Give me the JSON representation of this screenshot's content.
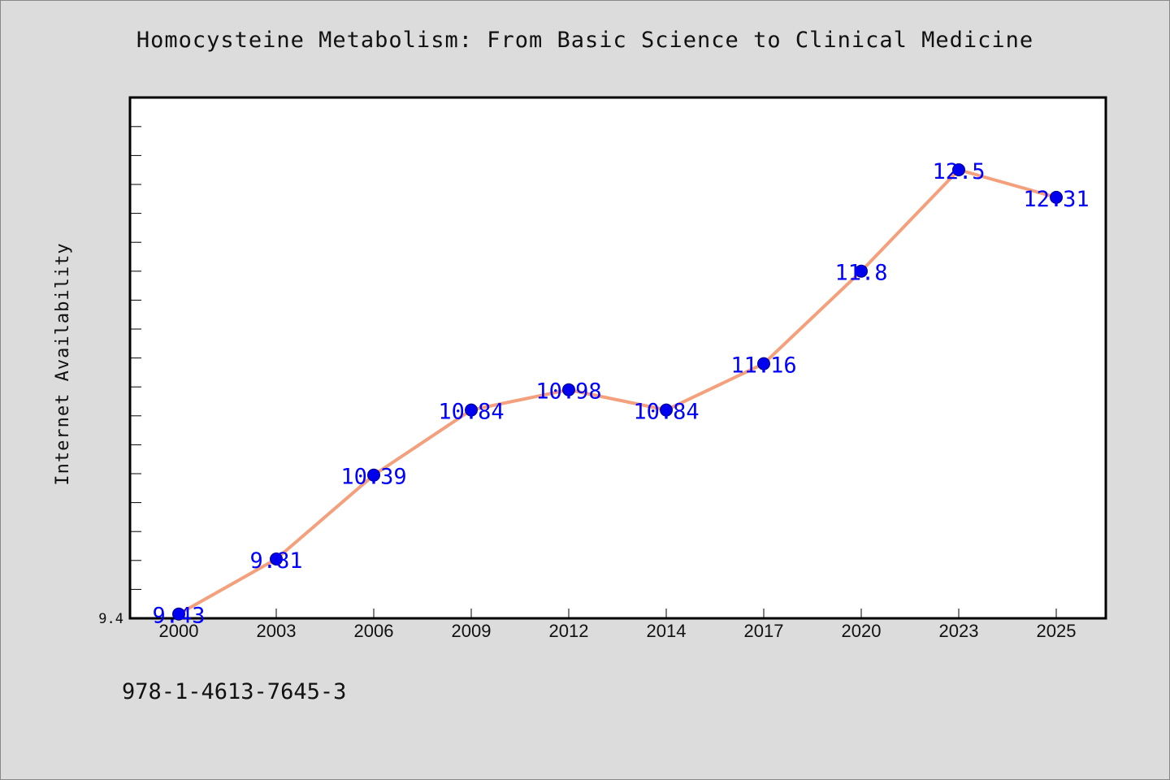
{
  "colors": {
    "background": "#dcdcdc",
    "plot_background": "#ffffff",
    "line": "#f4a07c",
    "marker": "#0000ee",
    "data_label": "#0000ff"
  },
  "footer": {
    "isbn": "978-1-4613-7645-3"
  },
  "chart_data": {
    "type": "line",
    "title": "Homocysteine Metabolism: From Basic Science to Clinical Medicine",
    "xlabel": "",
    "ylabel": "Internet Availability",
    "categories": [
      "2000",
      "2003",
      "2006",
      "2009",
      "2012",
      "2014",
      "2017",
      "2020",
      "2023",
      "2025"
    ],
    "series": [
      {
        "values": [
          9.43,
          9.81,
          10.39,
          10.84,
          10.98,
          10.84,
          11.16,
          11.8,
          12.5,
          12.31
        ],
        "labels": [
          "9.43",
          "9.81",
          "10.39",
          "10.84",
          "10.98",
          "10.84",
          "11.16",
          "11.8",
          "12.5",
          "12.31"
        ]
      }
    ],
    "y_tick_labels": [
      "9.4"
    ],
    "ylim": [
      9.4,
      13.0
    ],
    "grid": false,
    "legend": "none"
  }
}
